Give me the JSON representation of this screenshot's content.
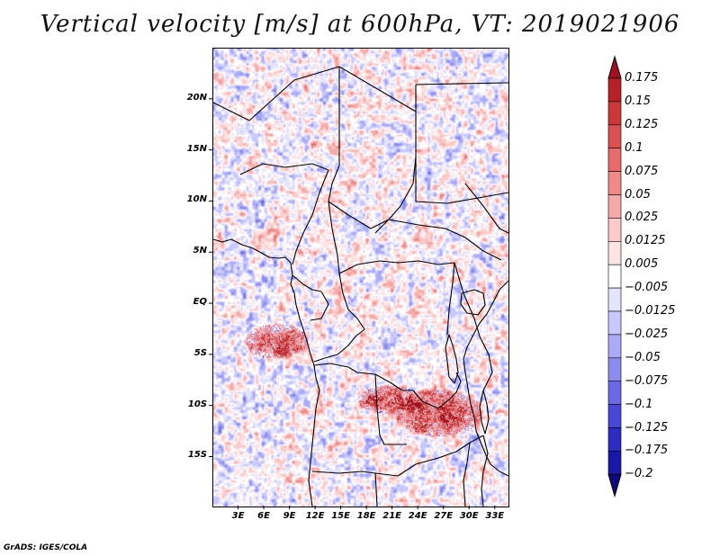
{
  "title": "Vertical velocity [m/s] at 600hPa, VT: 2019021906",
  "credit": "GrADS: IGES/COLA",
  "map": {
    "lat_ticks": [
      "20N",
      "15N",
      "10N",
      "5N",
      "EQ",
      "5S",
      "10S",
      "15S"
    ],
    "lat_values": [
      20,
      15,
      10,
      5,
      0,
      -5,
      -10,
      -15
    ],
    "lon_ticks": [
      "3E",
      "6E",
      "9E",
      "12E",
      "15E",
      "18E",
      "21E",
      "24E",
      "27E",
      "30E",
      "33E"
    ],
    "lon_values": [
      3,
      6,
      9,
      12,
      15,
      18,
      21,
      24,
      27,
      30,
      33
    ],
    "lon_range": [
      0,
      34.5
    ],
    "lat_range": [
      -19.8,
      25
    ]
  },
  "colorbar": {
    "labels": [
      "0.175",
      "0.15",
      "0.125",
      "0.1",
      "0.075",
      "0.05",
      "0.025",
      "0.0125",
      "0.005",
      "−0.005",
      "−0.0125",
      "−0.025",
      "−0.05",
      "−0.075",
      "−0.1",
      "−0.125",
      "−0.175",
      "−0.2"
    ],
    "colors": [
      "#a01020",
      "#b82028",
      "#cc3838",
      "#dc5050",
      "#e86a6a",
      "#f08a88",
      "#f6aaa8",
      "#fbcaca",
      "#fde4e4",
      "#ffffff",
      "#e4e4ff",
      "#c8c8ff",
      "#aaaaf8",
      "#8c8cf0",
      "#6a6ae6",
      "#4848d8",
      "#2c2cc4",
      "#1818a8",
      "#0c0c80"
    ]
  }
}
